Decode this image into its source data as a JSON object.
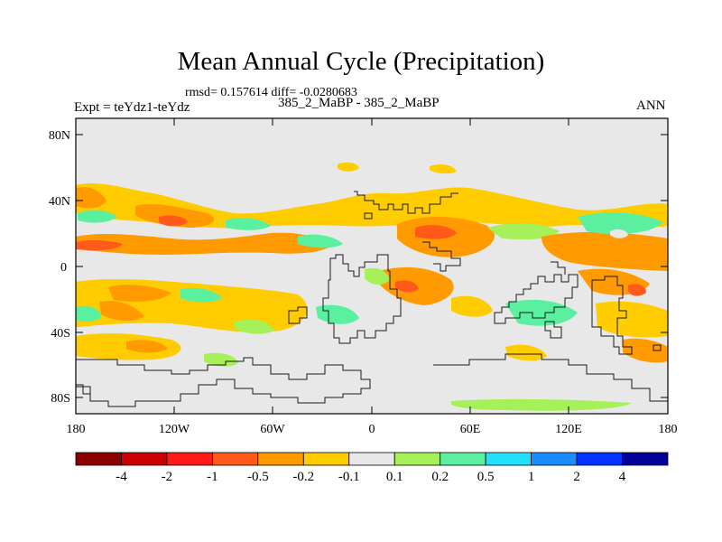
{
  "title": "Mean Annual Cycle (Precipitation)",
  "stats_line": "rmsd= 0.157614 diff= -0.0280683",
  "experiment_label": "Expt = teYdz1-teYdz",
  "runs_label": "385_2_MaBP - 385_2_MaBP",
  "season_label": "ANN",
  "y_axis_ticks": [
    "80N",
    "40N",
    "0",
    "40S",
    "80S"
  ],
  "x_axis_ticks": [
    "180",
    "120W",
    "60W",
    "0",
    "60E",
    "120E",
    "180"
  ],
  "colorbar": {
    "colors": [
      "#8b0000",
      "#cc0000",
      "#ff1a1a",
      "#ff5a1a",
      "#ff9a00",
      "#ffcc00",
      "#e8e8e8",
      "#a6f05a",
      "#5af0a0",
      "#22e0ff",
      "#1a8cff",
      "#0033ff",
      "#000099"
    ],
    "labels": [
      "-4",
      "-2",
      "-1",
      "-0.5",
      "-0.2",
      "-0.1",
      "0.1",
      "0.2",
      "0.5",
      "1",
      "2",
      "4"
    ]
  },
  "palette": {
    "background_field": "#e8e8e8",
    "neg_small": "#ffcc00",
    "neg_med": "#ff9a00",
    "neg_large": "#ff5a1a",
    "pos_small": "#a6f05a",
    "pos_med": "#5af0a0",
    "coastline": "#1a1a1a"
  }
}
